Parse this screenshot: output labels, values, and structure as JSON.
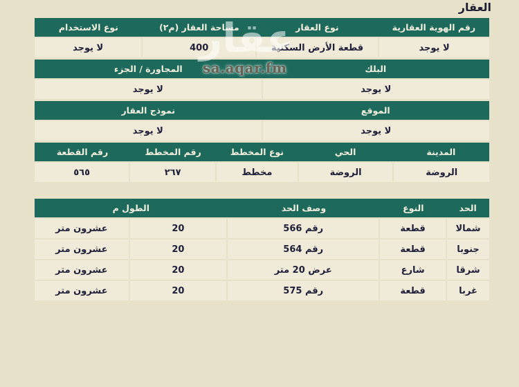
{
  "page": {
    "title": "العقار"
  },
  "watermark": {
    "logo": "عقار",
    "site": "sa.aqar.fm"
  },
  "colors": {
    "teal_header": "#1d6a5c",
    "page_background": "#e8e1ca",
    "row_background": "#f0ead8",
    "header_text": "#f2eedd",
    "body_text": "#20203a"
  },
  "tables": {
    "info1": {
      "headers": [
        "رقم الهوية العقارية",
        "نوع العقار",
        "مساحة العقار (م٢)",
        "نوع الاستخدام"
      ],
      "values": [
        "لا يوجد",
        "قطعة الأرض السكنية",
        "400",
        "لا يوجد"
      ]
    },
    "info2": {
      "headers": [
        "البلك",
        "المجاورة / الجزء"
      ],
      "values": [
        "لا يوجد",
        "لا يوجد"
      ]
    },
    "info3": {
      "headers": [
        "الموقع",
        "نموذج العقار"
      ],
      "values": [
        "لا يوجد",
        "لا يوجد"
      ]
    },
    "plan": {
      "headers": [
        "المدينة",
        "الحي",
        "نوع المخطط",
        "رقم المخطط",
        "رقم القطعة"
      ],
      "values": [
        "الروضة",
        "الروضة",
        "مخطط",
        "٢٦٧",
        "٥٦٥"
      ]
    },
    "boundaries": {
      "headers": [
        "الحد",
        "النوع",
        "وصف الحد",
        "الطول م"
      ],
      "rows": [
        [
          "شمالا",
          "قطعة",
          "رقم 566",
          "20",
          "عشرون متر"
        ],
        [
          "جنوبا",
          "قطعة",
          "رقم 564",
          "20",
          "عشرون متر"
        ],
        [
          "شرقا",
          "شارع",
          "عرض 20 متر",
          "20",
          "عشرون متر"
        ],
        [
          "غربا",
          "قطعة",
          "رقم 575",
          "20",
          "عشرون متر"
        ]
      ]
    }
  }
}
